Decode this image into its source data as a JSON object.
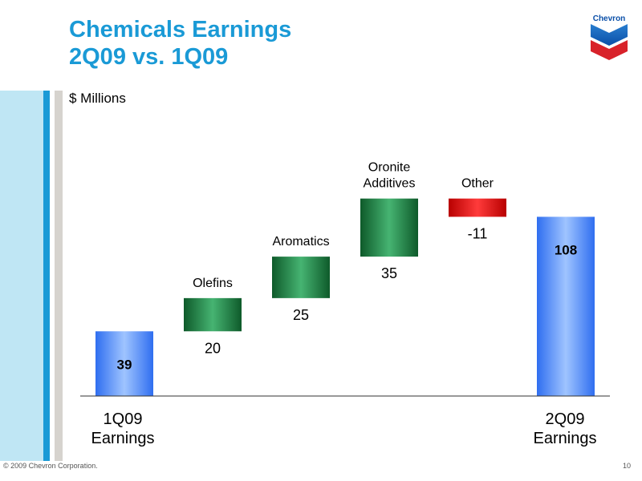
{
  "title_line1": "Chemicals Earnings",
  "title_line2": "2Q09 vs. 1Q09",
  "logo_text": "Chevron",
  "footer": {
    "copyright": "© 2009 Chevron Corporation.",
    "page_number": "10"
  },
  "colors": {
    "title": "#1a9ad6",
    "total_bar": "#4a86f0",
    "increase_bar": "#2d9a5a",
    "decrease_bar": "#e01010"
  },
  "chart_data": {
    "type": "bar",
    "subtype": "waterfall",
    "ylabel": "$ Millions",
    "categories": [
      "1Q09 Earnings",
      "Olefins",
      "Aromatics",
      "Oronite Additives",
      "Other",
      "2Q09 Earnings"
    ],
    "axis_labels": [
      {
        "line1": "1Q09",
        "line2": "Earnings"
      },
      {
        "line1": "",
        "line2": ""
      },
      {
        "line1": "",
        "line2": ""
      },
      {
        "line1": "",
        "line2": ""
      },
      {
        "line1": "",
        "line2": ""
      },
      {
        "line1": "2Q09",
        "line2": "Earnings"
      }
    ],
    "bars": [
      {
        "label": "",
        "value": 39,
        "kind": "total",
        "value_label": "39"
      },
      {
        "label": "Olefins",
        "value": 20,
        "kind": "increase",
        "value_label": "20"
      },
      {
        "label": "Aromatics",
        "value": 25,
        "kind": "increase",
        "value_label": "25"
      },
      {
        "label": "Oronite Additives",
        "value": 35,
        "kind": "increase",
        "value_label": "35"
      },
      {
        "label": "Other",
        "value": -11,
        "kind": "decrease",
        "value_label": "-11"
      },
      {
        "label": "",
        "value": 108,
        "kind": "total",
        "value_label": "108"
      }
    ],
    "grid": false,
    "legend": "none"
  }
}
